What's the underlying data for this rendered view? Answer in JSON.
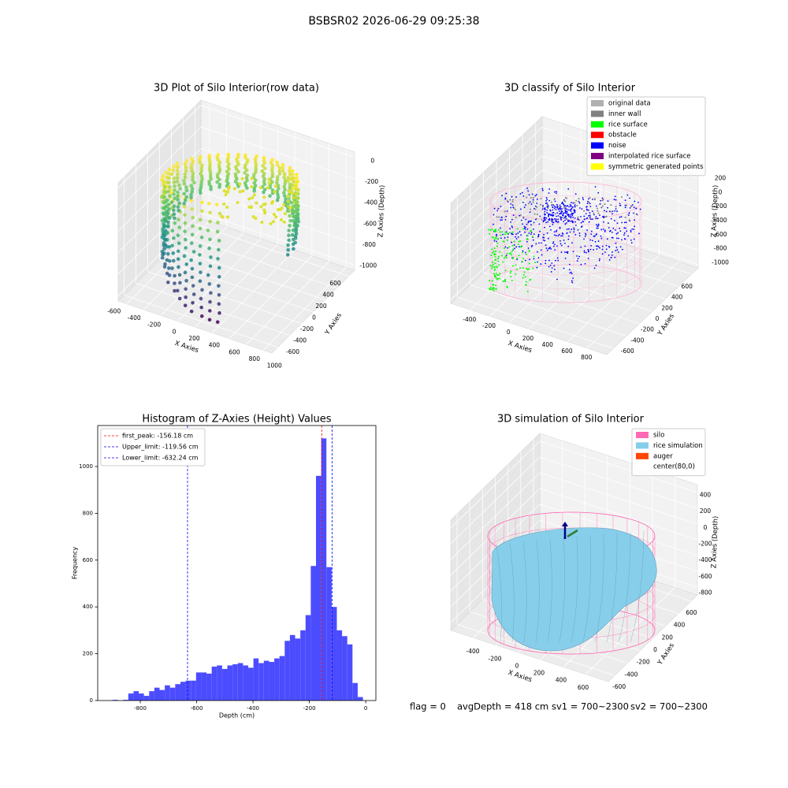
{
  "title": "BSBSR02 2026-06-29 09:25:38",
  "chart_data": [
    {
      "type": "scatter3d",
      "title": "3D Plot of Silo Interior(row data)",
      "x_label": "X Axies",
      "y_label": "Y Axies",
      "z_label": "Z Axies (Depth)",
      "xlim": [
        -700,
        1100
      ],
      "xticks": [
        -600,
        -400,
        -200,
        0,
        200,
        400,
        600,
        800,
        1000
      ],
      "ylim": [
        -700,
        700
      ],
      "yticks": [
        -600,
        -400,
        -200,
        0,
        200,
        400,
        600
      ],
      "zlim": [
        -1050,
        50
      ],
      "zticks": [
        -1000,
        -800,
        -600,
        -400,
        -200,
        0
      ],
      "colormap": "viridis"
    },
    {
      "type": "scatter3d",
      "title": "3D classify of Silo Interior",
      "x_label": "X Axies",
      "y_label": "Y Axies",
      "z_label": "Z Axies (Depth)",
      "xlim": [
        -600,
        1000
      ],
      "xticks": [
        -400,
        -200,
        0,
        200,
        400,
        600,
        800
      ],
      "ylim": [
        -700,
        700
      ],
      "yticks": [
        -600,
        -400,
        -200,
        0,
        200,
        400,
        600
      ],
      "zlim": [
        -1050,
        350
      ],
      "zticks": [
        -1000,
        -800,
        -600,
        -400,
        -200,
        0,
        200
      ],
      "legend": "upper right",
      "series": [
        {
          "name": "original data",
          "color": "#b0b0b0"
        },
        {
          "name": "inner wall",
          "color": "#808080"
        },
        {
          "name": "rice surface",
          "color": "#00ff00"
        },
        {
          "name": "obstacle",
          "color": "#ff0000"
        },
        {
          "name": "noise",
          "color": "#0000ff"
        },
        {
          "name": "interpolated rice surface",
          "color": "#800080"
        },
        {
          "name": "symmetric generated points",
          "color": "#ffff00"
        }
      ]
    },
    {
      "type": "histogram",
      "title": "Histogram of Z-Axies (Height) Values",
      "x_label": "Depth (cm)",
      "y_label": "Frequency",
      "color": "#4c4cff",
      "bins": [
        -935,
        -916.5,
        -898,
        -879.5,
        -861,
        -842.5,
        -824,
        -805.5,
        -787,
        -768.5,
        -750,
        -731.5,
        -713,
        -694.5,
        -676,
        -657.5,
        -639,
        -620.5,
        -602,
        -583.5,
        -565,
        -546.5,
        -528,
        -509.5,
        -491,
        -472.5,
        -454,
        -435.5,
        -417,
        -398.5,
        -380,
        -361.5,
        -343,
        -324.5,
        -306,
        -287.5,
        -269,
        -250.5,
        -232,
        -213.5,
        -195,
        -176.5,
        -158,
        -139.5,
        -121,
        -102.5,
        -84,
        -65.5,
        -47,
        -28.5,
        -10
      ],
      "values": [
        0,
        0,
        3,
        0,
        3,
        30,
        40,
        30,
        20,
        40,
        55,
        45,
        65,
        55,
        70,
        80,
        85,
        85,
        120,
        120,
        115,
        145,
        150,
        135,
        150,
        155,
        160,
        150,
        140,
        180,
        160,
        170,
        165,
        180,
        190,
        255,
        280,
        265,
        300,
        365,
        575,
        960,
        1120,
        570,
        400,
        300,
        275,
        240,
        75,
        15
      ],
      "xlim": [
        -951,
        36
      ],
      "xticks": [
        -800,
        -600,
        -400,
        -200,
        0
      ],
      "ylim": [
        0,
        1175
      ],
      "yticks": [
        0,
        200,
        400,
        600,
        800,
        1000
      ],
      "legend": "upper left",
      "lines": [
        {
          "name": "first_peak: -156.18 cm",
          "value": -156.18,
          "color": "#ff0000"
        },
        {
          "name": "Upper_limit: -119.56 cm",
          "value": -119.56,
          "color": "#0000ff"
        },
        {
          "name": "Lower_limit: -632.24 cm",
          "value": -632.24,
          "color": "#0000ff"
        }
      ]
    },
    {
      "type": "surface3d",
      "title": "3D simulation of Silo Interior",
      "x_label": "X Axies",
      "y_label": "Y Axies",
      "z_label": "Z Axies (Depth)",
      "xlim": [
        -600,
        800
      ],
      "xticks": [
        -400,
        -200,
        0,
        200,
        400,
        600
      ],
      "ylim": [
        -700,
        700
      ],
      "yticks": [
        -600,
        -400,
        -200,
        0,
        200,
        400,
        600
      ],
      "zlim": [
        -900,
        500
      ],
      "zticks": [
        -800,
        -600,
        -400,
        -200,
        0,
        200,
        400
      ],
      "legend": "upper right",
      "series": [
        {
          "name": "silo",
          "color": "#ff69b4"
        },
        {
          "name": "rice simulation",
          "color": "#87ceeb"
        },
        {
          "name": "auger",
          "color": "#ff4500"
        },
        {
          "name": "center(80,0)",
          "color": "#ffffff"
        }
      ]
    }
  ],
  "status": {
    "flag": "flag = 0",
    "avgDepth": "avgDepth = 418 cm",
    "sv1": "sv1 = 700~2300",
    "sv2": "sv2 = 700~2300"
  }
}
